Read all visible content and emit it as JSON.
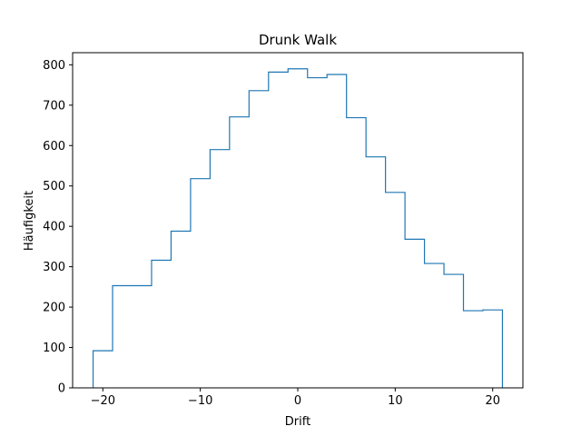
{
  "chart_data": {
    "type": "histogram",
    "title": "Drunk Walk",
    "xlabel": "Drift",
    "ylabel": "Häufigkeit",
    "xlim": [
      -23.1,
      23.1
    ],
    "ylim": [
      0,
      830
    ],
    "xticks": [
      -20,
      -10,
      0,
      10,
      20
    ],
    "xtick_labels": [
      "−20",
      "−10",
      "0",
      "10",
      "20"
    ],
    "yticks": [
      0,
      100,
      200,
      300,
      400,
      500,
      600,
      700,
      800
    ],
    "ytick_labels": [
      "0",
      "100",
      "200",
      "300",
      "400",
      "500",
      "600",
      "700",
      "800"
    ],
    "bin_edges": [
      -21,
      -19,
      -17,
      -15,
      -13,
      -11,
      -9,
      -7,
      -5,
      -3,
      -1,
      1,
      3,
      5,
      7,
      9,
      11,
      13,
      15,
      17,
      19,
      21
    ],
    "values": [
      92,
      253,
      253,
      316,
      388,
      518,
      590,
      671,
      736,
      782,
      790,
      768,
      776,
      669,
      572,
      484,
      368,
      308,
      281,
      191,
      193
    ],
    "line_color": "#1f77b4",
    "histtype": "step",
    "grid": false,
    "legend": "none"
  }
}
